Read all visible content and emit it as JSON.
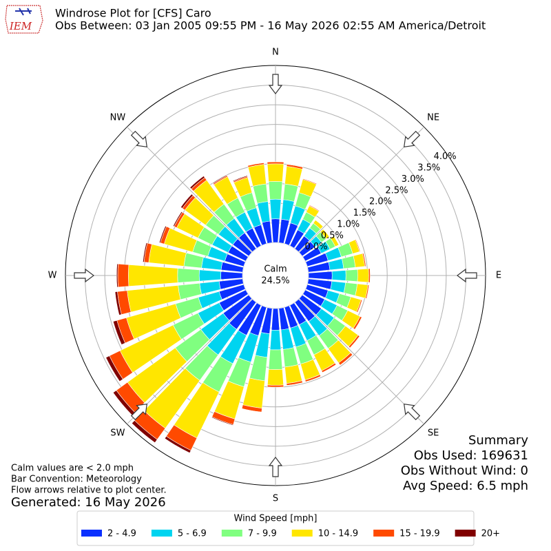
{
  "chart_data": {
    "type": "windrose",
    "title": "Windrose Plot for [CFS] Caro",
    "subtitle": "Obs Between: 03 Jan 2005 09:55 PM - 16 May 2026 02:55 AM America/Detroit",
    "logo_text": "IEM",
    "x": [
      0,
      10,
      20,
      30,
      40,
      50,
      60,
      70,
      80,
      90,
      100,
      110,
      120,
      130,
      140,
      150,
      160,
      170,
      180,
      190,
      200,
      210,
      220,
      230,
      240,
      250,
      260,
      270,
      280,
      290,
      300,
      310,
      320,
      330,
      340,
      350
    ],
    "compass": [
      "N",
      "NE",
      "E",
      "SE",
      "S",
      "SW",
      "W",
      "NW"
    ],
    "rlim": [
      0,
      4.5
    ],
    "rticks": [
      {
        "value": 0,
        "label": "0.0%"
      },
      {
        "value": 0.5,
        "label": "0.5%"
      },
      {
        "value": 1,
        "label": "1.0%"
      },
      {
        "value": 1.5,
        "label": "1.5%"
      },
      {
        "value": 2,
        "label": "2.0%"
      },
      {
        "value": 2.5,
        "label": "2.5%"
      },
      {
        "value": 3,
        "label": "3.0%"
      },
      {
        "value": 3.5,
        "label": "3.5%"
      },
      {
        "value": 4,
        "label": "4.0%"
      }
    ],
    "grid": true,
    "calm": {
      "label": "Calm",
      "value": 24.5,
      "value_label": "24.5%"
    },
    "legend_title": "Wind Speed [mph]",
    "series": [
      {
        "name": "2 - 4.9",
        "color": "#0a30ff",
        "values": [
          0.6,
          0.6,
          0.55,
          0.45,
          0.4,
          0.4,
          0.45,
          0.55,
          0.55,
          0.6,
          0.6,
          0.55,
          0.55,
          0.6,
          0.6,
          0.55,
          0.55,
          0.55,
          0.55,
          0.65,
          0.75,
          0.85,
          0.85,
          0.8,
          0.75,
          0.65,
          0.6,
          0.55,
          0.55,
          0.5,
          0.5,
          0.5,
          0.5,
          0.5,
          0.5,
          0.55
        ]
      },
      {
        "name": "5 - 6.9",
        "color": "#00d4f0",
        "values": [
          0.5,
          0.5,
          0.45,
          0.3,
          0.25,
          0.2,
          0.25,
          0.35,
          0.35,
          0.35,
          0.35,
          0.3,
          0.35,
          0.4,
          0.45,
          0.45,
          0.5,
          0.5,
          0.5,
          0.6,
          0.7,
          0.8,
          0.8,
          0.7,
          0.6,
          0.55,
          0.5,
          0.55,
          0.5,
          0.45,
          0.45,
          0.45,
          0.45,
          0.45,
          0.45,
          0.5
        ]
      },
      {
        "name": "7 - 9.9",
        "color": "#80ff80",
        "values": [
          0.45,
          0.4,
          0.35,
          0.2,
          0.15,
          0.15,
          0.15,
          0.3,
          0.3,
          0.3,
          0.3,
          0.3,
          0.3,
          0.35,
          0.4,
          0.4,
          0.45,
          0.45,
          0.5,
          0.6,
          0.65,
          0.8,
          0.8,
          0.8,
          0.7,
          0.6,
          0.55,
          0.55,
          0.45,
          0.4,
          0.4,
          0.4,
          0.45,
          0.4,
          0.4,
          0.45
        ]
      },
      {
        "name": "10 - 14.9",
        "color": "#ffe600",
        "values": [
          0.45,
          0.45,
          0.35,
          0.18,
          0.1,
          0.1,
          0.1,
          0.18,
          0.24,
          0.28,
          0.27,
          0.27,
          0.35,
          0.4,
          0.45,
          0.45,
          0.42,
          0.42,
          0.4,
          0.7,
          0.85,
          1.3,
          1.5,
          1.5,
          1.5,
          1.3,
          1.3,
          1.25,
          0.9,
          0.75,
          0.6,
          0.65,
          0.75,
          0.6,
          0.4,
          0.5
        ]
      },
      {
        "name": "15 - 19.9",
        "color": "#ff4a00",
        "values": [
          0.05,
          0.05,
          0.02,
          0.02,
          0,
          0,
          0,
          0.02,
          0.03,
          0.04,
          0.03,
          0.03,
          0.05,
          0.05,
          0.07,
          0.05,
          0.05,
          0.05,
          0.05,
          0.1,
          0.15,
          0.35,
          0.35,
          0.35,
          0.3,
          0.25,
          0.25,
          0.27,
          0.12,
          0.1,
          0.07,
          0.08,
          0.08,
          0.03,
          0.03,
          0.04
        ]
      },
      {
        "name": "20+",
        "color": "#800000",
        "values": [
          0,
          0,
          0,
          0,
          0,
          0,
          0,
          0,
          0,
          0,
          0,
          0,
          0,
          0,
          0,
          0,
          0,
          0,
          0,
          0,
          0.02,
          0.07,
          0.1,
          0.1,
          0.1,
          0.1,
          0.06,
          0.03,
          0.03,
          0.03,
          0.03,
          0.05,
          0.05,
          0.02,
          0.02,
          0.01
        ]
      }
    ],
    "summary": [
      "Summary",
      "Obs Used: 169631",
      "Obs Without Wind: 0",
      "Avg Speed: 6.5 mph"
    ],
    "notes": [
      "Calm values are < 2.0 mph",
      "Bar Convention: Meteorology",
      "Flow arrows relative to plot center."
    ],
    "generated": "Generated: 16 May 2026"
  }
}
